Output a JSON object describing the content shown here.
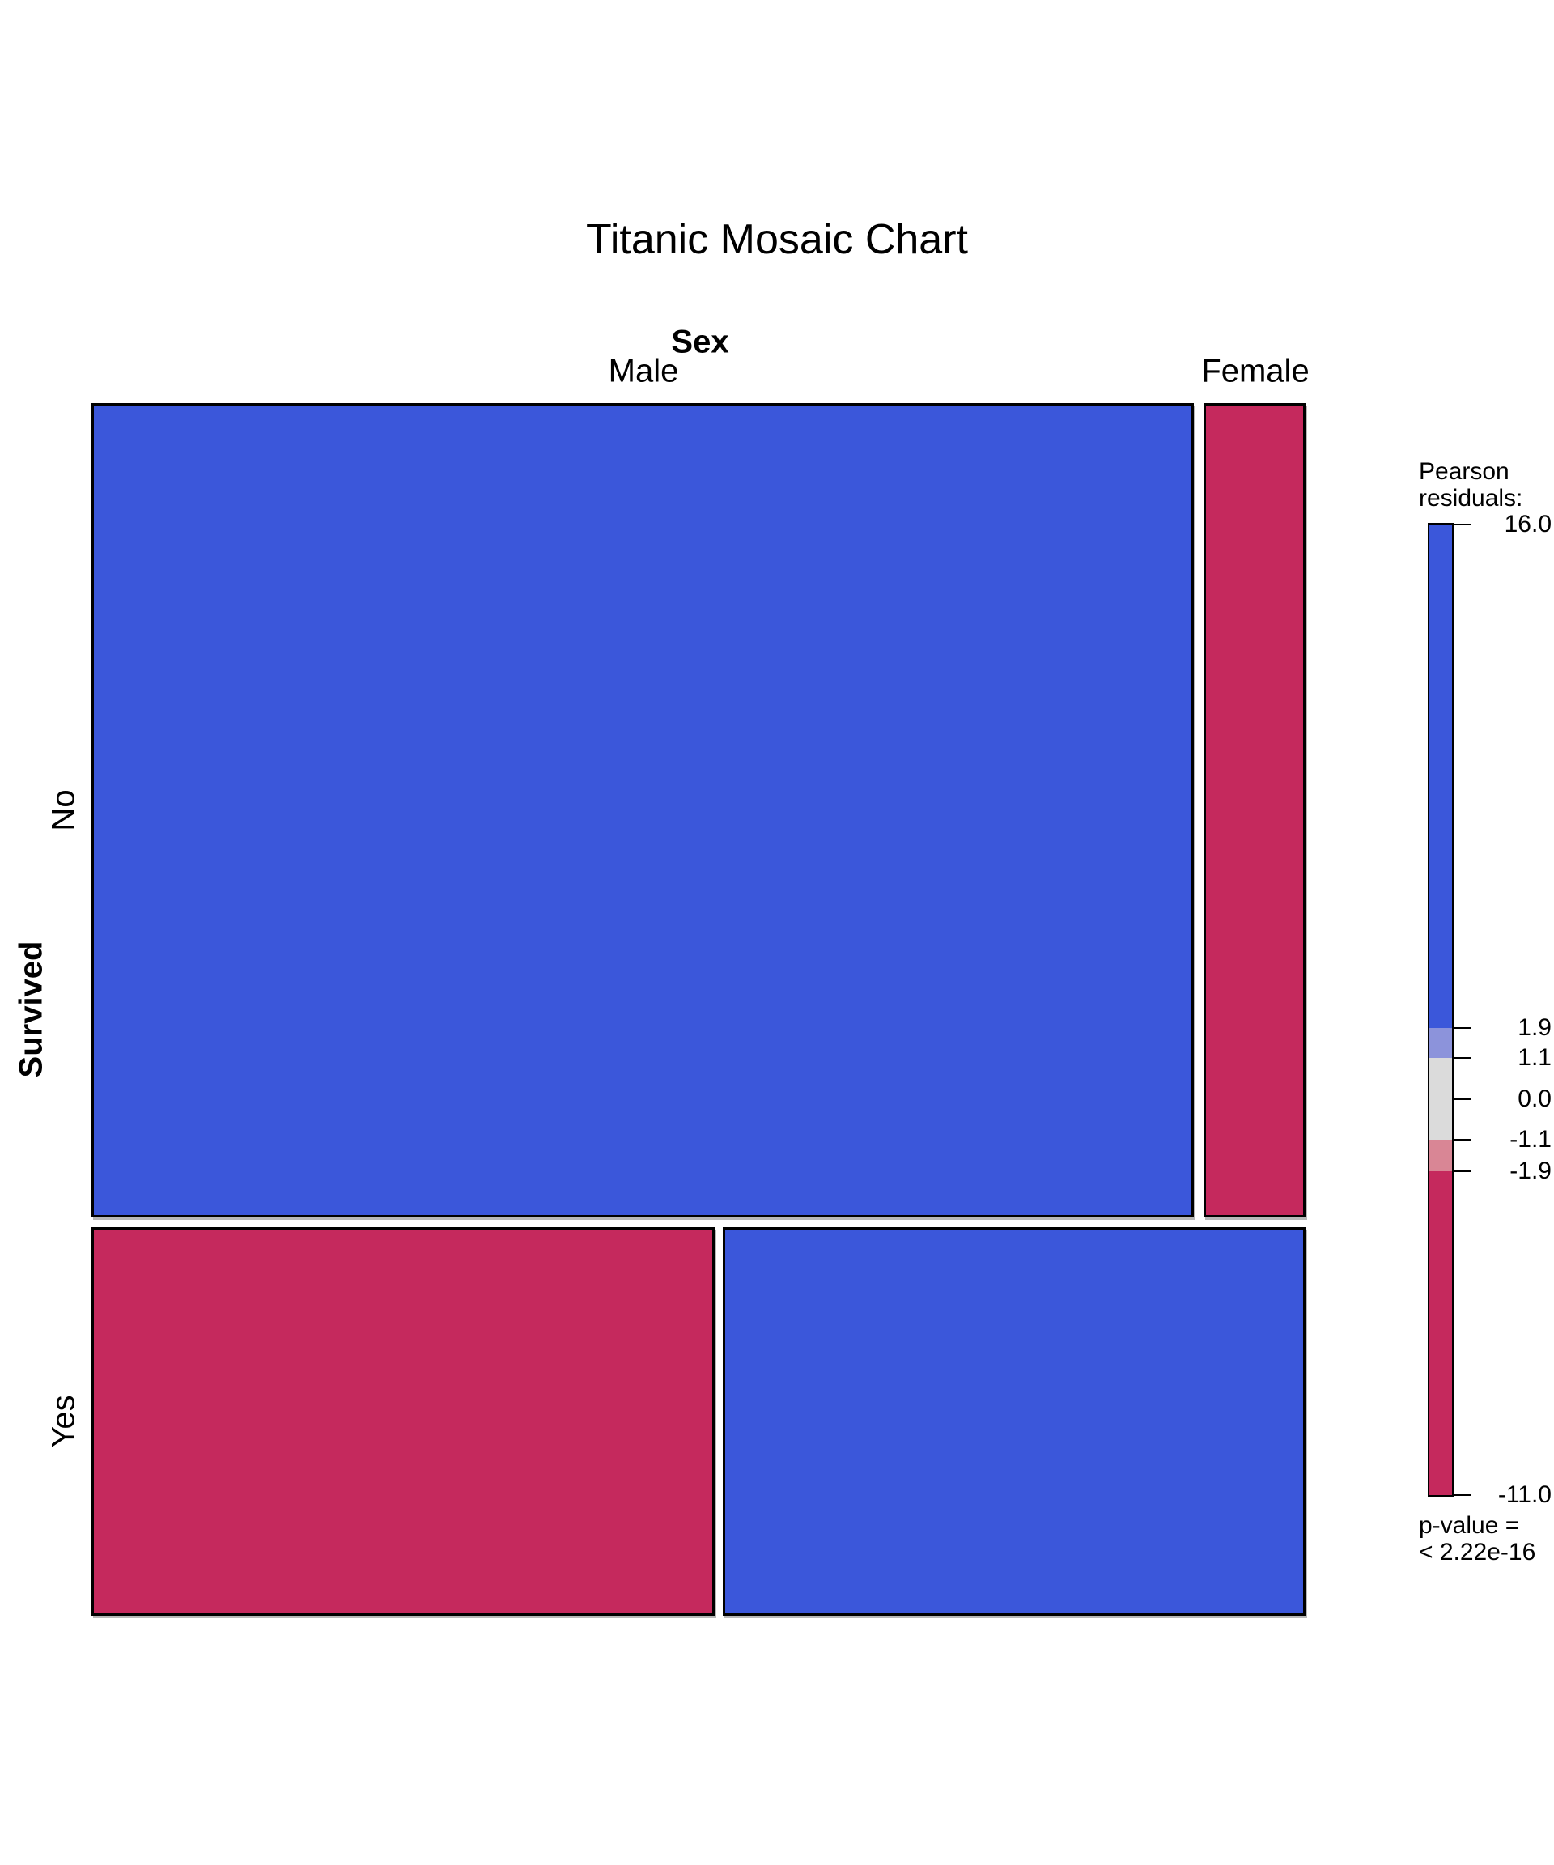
{
  "chart": {
    "title": "Titanic Mosaic Chart",
    "top_axis": {
      "label": "Sex",
      "categories": [
        "Male",
        "Female"
      ]
    },
    "left_axis": {
      "label": "Survived",
      "categories": [
        "No",
        "Yes"
      ]
    }
  },
  "legend": {
    "title_line1": "Pearson",
    "title_line2": "residuals:",
    "ticks": [
      {
        "label": "16.0",
        "value": 16.0
      },
      {
        "label": "1.9",
        "value": 1.9
      },
      {
        "label": "1.1",
        "value": 1.1
      },
      {
        "label": "0.0",
        "value": 0.0
      },
      {
        "label": "-1.1",
        "value": -1.1
      },
      {
        "label": "-1.9",
        "value": -1.9
      },
      {
        "label": "-11.0",
        "value": -11.0
      }
    ],
    "bands": [
      {
        "range": "> 1.9",
        "color": "#3B57DA"
      },
      {
        "range": "1.1 to 1.9",
        "color": "#8C93DB"
      },
      {
        "range": "-1.1 to 1.1",
        "color": "#DBDBDB"
      },
      {
        "range": "-1.9 to -1.1",
        "color": "#D98695"
      },
      {
        "range": "< -1.9",
        "color": "#C5295D"
      }
    ],
    "p_value_line1": "p-value =",
    "p_value_line2": "< 2.22e-16"
  },
  "chart_data": {
    "type": "mosaic",
    "title": "Titanic Mosaic Chart",
    "row_variable": "Survived",
    "column_variable": "Sex",
    "rows": [
      "No",
      "Yes"
    ],
    "columns": [
      "Male",
      "Female"
    ],
    "row_height_fractions": [
      0.677,
      0.323
    ],
    "cells": [
      {
        "survived": "No",
        "sex": "Male",
        "width_fraction_of_row": 0.915,
        "residual_band": "> 1.9",
        "color": "#3B57DA"
      },
      {
        "survived": "No",
        "sex": "Female",
        "width_fraction_of_row": 0.085,
        "residual_band": "< -1.9",
        "color": "#C5295D"
      },
      {
        "survived": "Yes",
        "sex": "Male",
        "width_fraction_of_row": 0.516,
        "residual_band": "< -1.9",
        "color": "#C5295D"
      },
      {
        "survived": "Yes",
        "sex": "Female",
        "width_fraction_of_row": 0.484,
        "residual_band": "> 1.9",
        "color": "#3B57DA"
      }
    ],
    "residual_scale": {
      "max": 16.0,
      "min": -11.0,
      "breaks": [
        1.9,
        1.1,
        0.0,
        -1.1,
        -1.9
      ]
    },
    "p_value": "< 2.22e-16",
    "legend_position": "right",
    "grid": false
  }
}
